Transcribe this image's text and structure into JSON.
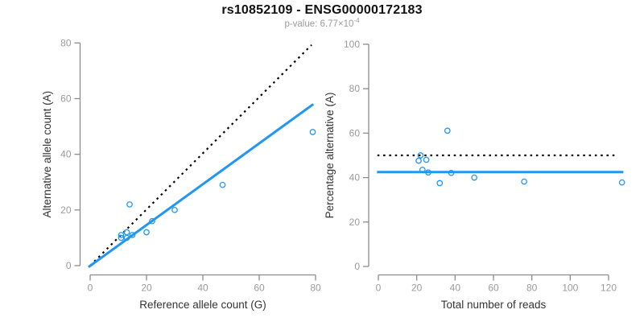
{
  "header": {
    "title": "rs10852109 - ENSG00000172183",
    "pvalue_label": "p-value: 6.77×10",
    "pvalue_exponent": "-4"
  },
  "colors": {
    "accent_blue": "#2196F3",
    "dotted_black": "#000000",
    "axis_line": "#8c8c8c",
    "tick_label": "#9a9a9a",
    "axis_title": "#333333",
    "subtitle_gray": "#9a9a9a"
  },
  "chart_data": [
    {
      "type": "scatter",
      "name": "allele-counts-scatter",
      "title": "",
      "xlabel": "Reference allele count (G)",
      "ylabel": "Alternative allele count (A)",
      "xlim": [
        0,
        80
      ],
      "ylim": [
        0,
        80
      ],
      "xticks": [
        0,
        20,
        40,
        60,
        80
      ],
      "yticks": [
        0,
        20,
        40,
        60,
        80
      ],
      "grid": false,
      "legend": "none",
      "marker": "open-circle",
      "points": [
        [
          11,
          10
        ],
        [
          11,
          11
        ],
        [
          13,
          10
        ],
        [
          13,
          12
        ],
        [
          15,
          11
        ],
        [
          14,
          22
        ],
        [
          20,
          12
        ],
        [
          22,
          16
        ],
        [
          30,
          20
        ],
        [
          47,
          29
        ],
        [
          79,
          48
        ]
      ],
      "lines": [
        {
          "name": "expected-50pct-identity-line",
          "style": "dotted",
          "color": "#000000",
          "x1": 0,
          "y1": 0,
          "x2": 78.6,
          "y2": 79.3
        },
        {
          "name": "fitted-regression-line",
          "style": "solid",
          "color": "#2196F3",
          "x1": -0.6,
          "y1": -0.5,
          "x2": 79.2,
          "y2": 58
        }
      ]
    },
    {
      "type": "scatter",
      "name": "percentage-vs-reads-scatter",
      "title": "",
      "xlabel": "Total number of reads",
      "ylabel": "Percentage alternative (A)",
      "xlim": [
        0,
        128
      ],
      "ylim": [
        0,
        100
      ],
      "xticks": [
        0,
        20,
        40,
        60,
        80,
        100,
        120
      ],
      "yticks": [
        0,
        20,
        40,
        60,
        80,
        100
      ],
      "grid": false,
      "legend": "none",
      "marker": "open-circle",
      "points": [
        [
          21,
          47.6
        ],
        [
          22,
          50
        ],
        [
          23,
          43.5
        ],
        [
          25,
          48
        ],
        [
          26,
          42.3
        ],
        [
          32,
          37.5
        ],
        [
          36,
          61.1
        ],
        [
          38,
          42.1
        ],
        [
          50,
          40
        ],
        [
          76,
          38.2
        ],
        [
          127,
          37.8
        ]
      ],
      "lines": [
        {
          "name": "expected-50pct-line",
          "style": "dotted",
          "color": "#000000",
          "x1": -0.5,
          "y1": 50,
          "x2": 125,
          "y2": 50
        },
        {
          "name": "mean-percentage-line",
          "style": "solid",
          "color": "#2196F3",
          "x1": -0.7,
          "y1": 42.5,
          "x2": 127.7,
          "y2": 42.5
        }
      ]
    }
  ]
}
